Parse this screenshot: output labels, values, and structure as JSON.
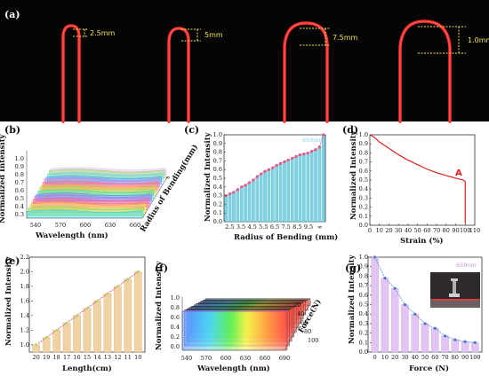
{
  "panels": {
    "a": {
      "label": "(a)",
      "measurements": [
        "2.5mm",
        "5mm",
        "7.5mm",
        "1.0mm"
      ]
    },
    "b": {
      "label": "(b)"
    },
    "c": {
      "label": "(c)"
    },
    "d": {
      "label": "(d)"
    },
    "e": {
      "label": "(e)"
    },
    "f": {
      "label": "(f)"
    },
    "g": {
      "label": "(g)"
    }
  },
  "colors": {
    "photo_bg": "#050505",
    "fiber_red": "#ff2a2a",
    "measure_yellow": "#f3e24a",
    "bar_cyan": "#7fd3e3",
    "bar_tan": "#f1d3a3",
    "bar_lavender": "#e3c4f3",
    "curve_pink": "#e05a8a",
    "curve_red": "#e02020"
  },
  "chart_data": [
    {
      "panel": "b",
      "type": "area",
      "title": "",
      "xlabel": "Wavelength (nm)",
      "ylabel": "Normalized Intensity",
      "zlabel": "Radius of Bending(mm)",
      "xticks": [
        "540",
        "570",
        "600",
        "630",
        "660"
      ],
      "yticks": [
        "0.3",
        "0.4",
        "0.5",
        "0.6",
        "0.7",
        "0.8",
        "0.9",
        "1.0"
      ],
      "ztick_label": "∞",
      "num_series": 16
    },
    {
      "panel": "c",
      "type": "bar",
      "legend_label": "650nm",
      "xlabel": "Radius of Bending (mm)",
      "ylabel": "Normalized Intensity",
      "xticks": [
        "2.5",
        "3.5",
        "4.5",
        "5.5",
        "6.5",
        "7.5",
        "8.5",
        "9.5",
        "∞"
      ],
      "yticks": [
        "0.0",
        "0.1",
        "0.2",
        "0.3",
        "0.4",
        "0.5",
        "0.6",
        "0.7",
        "0.8",
        "0.9",
        "1.0"
      ],
      "ylim": [
        0,
        1.0
      ],
      "values": [
        0.3,
        0.32,
        0.34,
        0.37,
        0.4,
        0.42,
        0.45,
        0.48,
        0.52,
        0.55,
        0.58,
        0.6,
        0.62,
        0.65,
        0.67,
        0.69,
        0.71,
        0.73,
        0.75,
        0.77,
        0.78,
        0.79,
        0.81,
        0.83,
        0.86,
        1.0
      ]
    },
    {
      "panel": "d",
      "type": "line",
      "xlabel": "Strain (%)",
      "ylabel": "Normalized Intensity",
      "xticks": [
        "0",
        "10",
        "20",
        "30",
        "40",
        "50",
        "60",
        "70",
        "80",
        "90",
        "100",
        "110"
      ],
      "yticks": [
        "0.0",
        "0.1",
        "0.2",
        "0.3",
        "0.4",
        "0.5",
        "0.6",
        "0.7",
        "0.8",
        "0.9",
        "1.0"
      ],
      "xlim": [
        0,
        110
      ],
      "ylim": [
        0,
        1.0
      ],
      "annotation": "A",
      "x": [
        0,
        5,
        10,
        20,
        30,
        40,
        50,
        60,
        70,
        80,
        90,
        98,
        100,
        100
      ],
      "y": [
        1.0,
        0.97,
        0.92,
        0.85,
        0.78,
        0.72,
        0.67,
        0.62,
        0.58,
        0.55,
        0.52,
        0.5,
        0.48,
        0.02
      ]
    },
    {
      "panel": "e",
      "type": "bar",
      "xlabel": "Length(cm)",
      "ylabel": "Normalized Intensity",
      "xticks": [
        "20",
        "19",
        "18",
        "17",
        "16",
        "15",
        "14",
        "13",
        "12",
        "11",
        "10"
      ],
      "yticks": [
        "1.0",
        "1.2",
        "1.4",
        "1.6",
        "1.8",
        "2.0",
        "2.2"
      ],
      "ylim": [
        0.9,
        2.2
      ],
      "values": [
        1.0,
        1.1,
        1.2,
        1.3,
        1.4,
        1.5,
        1.6,
        1.7,
        1.8,
        1.9,
        2.0
      ]
    },
    {
      "panel": "f",
      "type": "area",
      "xlabel": "Wavelength (nm)",
      "ylabel": "Normalized Intensity",
      "zlabel": "Force(N)",
      "xticks": [
        "540",
        "570",
        "600",
        "630",
        "660",
        "690"
      ],
      "yticks": [
        "0.0",
        "0.2",
        "0.4",
        "0.6",
        "0.8",
        "1.0"
      ],
      "zticks": [
        "20",
        "40",
        "60",
        "80",
        "100"
      ],
      "num_series": 11
    },
    {
      "panel": "g",
      "type": "bar",
      "legend_label": "650nm",
      "xlabel": "Force (N)",
      "ylabel": "Normalized Intensity",
      "xticks": [
        "0",
        "10",
        "20",
        "30",
        "40",
        "50",
        "60",
        "70",
        "80",
        "90",
        "100"
      ],
      "yticks": [
        "0.0",
        "0.1",
        "0.2",
        "0.3",
        "0.4",
        "0.5",
        "0.6",
        "0.7",
        "0.8",
        "0.9",
        "1.0"
      ],
      "ylim": [
        0,
        1.0
      ],
      "values": [
        1.0,
        0.78,
        0.67,
        0.5,
        0.4,
        0.3,
        0.25,
        0.17,
        0.13,
        0.11,
        0.1
      ]
    }
  ]
}
